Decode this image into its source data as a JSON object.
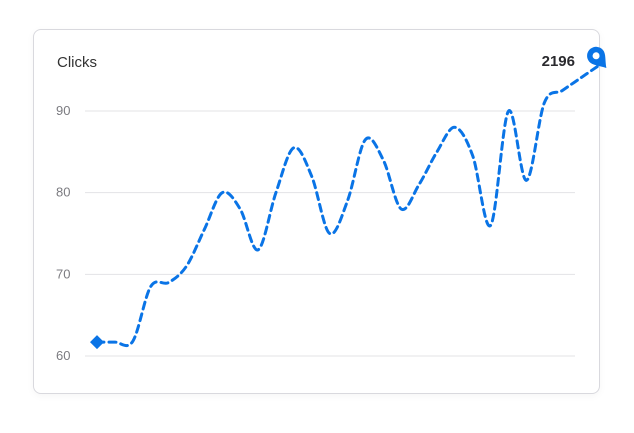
{
  "card": {
    "title": "Clicks",
    "total": "2196"
  },
  "chart_data": {
    "type": "line",
    "title": "Clicks",
    "xlabel": "",
    "ylabel": "",
    "ylim": [
      60,
      90
    ],
    "yticks": [
      60,
      70,
      80,
      90
    ],
    "grid": true,
    "line_style": "dashed",
    "color": "#0a74e6",
    "start_marker": "diamond",
    "end_marker": "location-pin-icon",
    "series": [
      {
        "values": [
          61.7,
          61.7,
          61.8,
          68.5,
          69.0,
          71.0,
          75.5,
          80.0,
          78.0,
          73.0,
          80.0,
          85.5,
          82.0,
          75.0,
          79.0,
          86.5,
          84.0,
          78.0,
          81.0,
          85.0,
          88.0,
          84.5,
          76.0,
          90.0,
          81.5,
          91.0,
          92.5,
          94.0,
          95.5
        ]
      }
    ]
  }
}
